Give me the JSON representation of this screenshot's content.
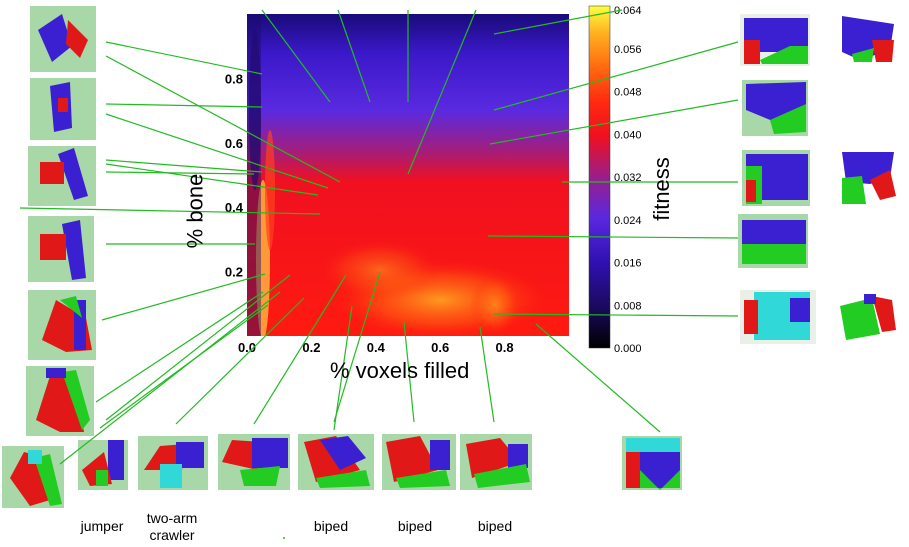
{
  "chart_data": {
    "type": "heatmap",
    "xlabel": "% voxels filled",
    "ylabel": "% bone",
    "colorbar_label": "fitness",
    "xlim": [
      0.0,
      1.0
    ],
    "ylim": [
      0.0,
      1.0
    ],
    "x_ticks": [
      "0.0",
      "0.2",
      "0.4",
      "0.6",
      "0.8"
    ],
    "y_ticks": [
      "0.2",
      "0.4",
      "0.6",
      "0.8"
    ],
    "colorbar_ticks": [
      "0.000",
      "0.008",
      "0.016",
      "0.024",
      "0.032",
      "0.040",
      "0.048",
      "0.056",
      "0.064"
    ],
    "colorbar_range": [
      0.0,
      0.064
    ],
    "colormap": [
      "#000000",
      "#1a0a5e",
      "#3a1ab8",
      "#5a28e0",
      "#8a2090",
      "#c01838",
      "#ff1010",
      "#ff3a10",
      "#ff7a10",
      "#ffb820",
      "#ffff40"
    ],
    "fitness_trend": {
      "low_fill_high_bone": 0.02,
      "mid_fill_mid_bone": 0.045,
      "high_fill_low_bone": 0.058
    },
    "annotations": [
      "jumper",
      "two-arm\ncrawler",
      "biped",
      "biped",
      "biped"
    ],
    "pointer_color": "#22bb22"
  }
}
